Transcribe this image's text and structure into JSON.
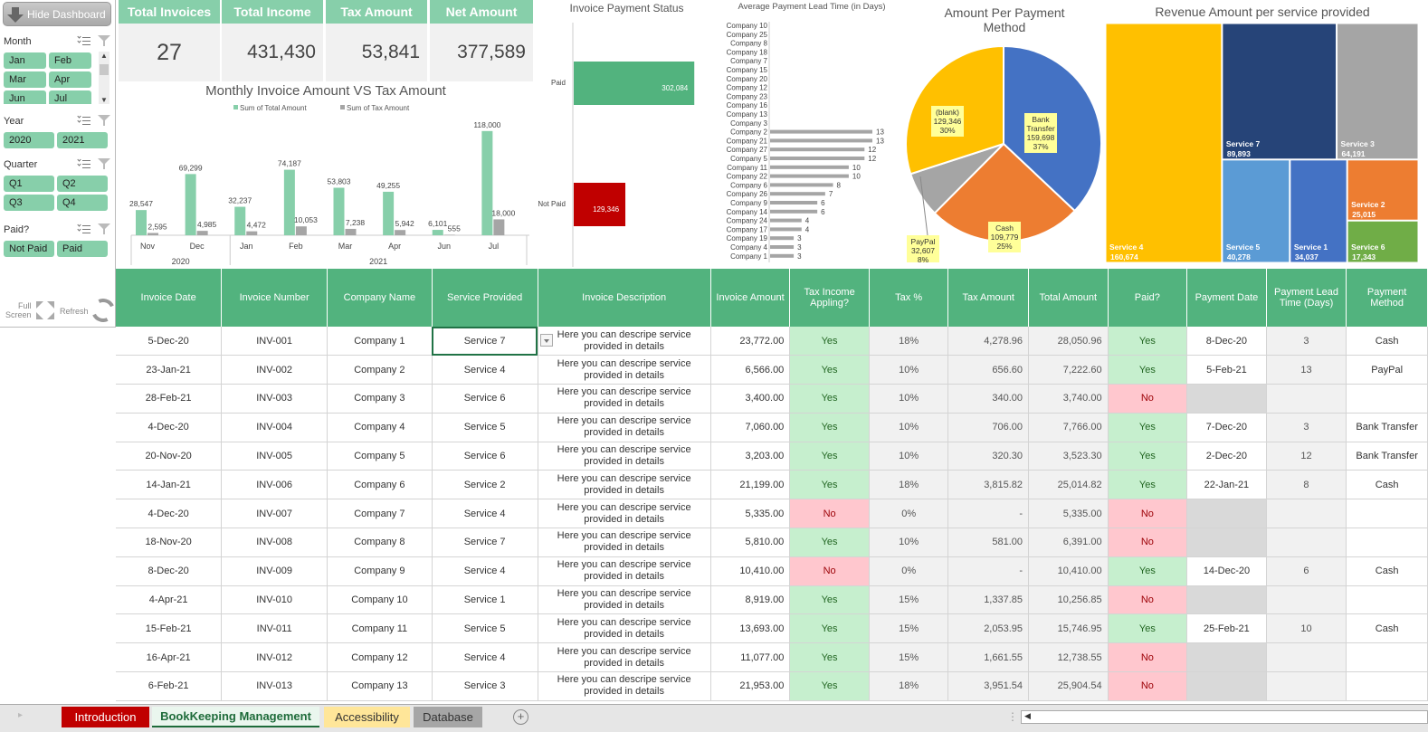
{
  "sidebar": {
    "hide_button": "Hide Dashboard",
    "slicers": [
      {
        "title": "Month",
        "items": [
          "Jan",
          "Feb",
          "Mar",
          "Apr",
          "Jun",
          "Jul"
        ]
      },
      {
        "title": "Year",
        "items": [
          "2020",
          "2021"
        ]
      },
      {
        "title": "Quarter",
        "items": [
          "Q1",
          "Q2",
          "Q3",
          "Q4"
        ]
      },
      {
        "title": "Paid?",
        "items": [
          "Not Paid",
          "Paid"
        ]
      }
    ],
    "full_screen_line1": "Full",
    "full_screen_line2": "Screen",
    "refresh": "Refresh"
  },
  "kpis": [
    {
      "label": "Total Invoices",
      "value": "27"
    },
    {
      "label": "Total Income",
      "value": "431,430"
    },
    {
      "label": "Tax Amount",
      "value": "53,841"
    },
    {
      "label": "Net Amount",
      "value": "377,589"
    }
  ],
  "chart_data": [
    {
      "type": "bar",
      "title": "Monthly Invoice Amount VS Tax Amount",
      "categories": [
        "Nov",
        "Dec",
        "Jan",
        "Feb",
        "Mar",
        "Apr",
        "Jun",
        "Jul"
      ],
      "groups": [
        {
          "label": "2020",
          "span": 2
        },
        {
          "label": "2021",
          "span": 6
        }
      ],
      "series": [
        {
          "name": "Sum of Total Amount",
          "color": "#87cfaa",
          "values": [
            28547,
            69299,
            32237,
            74187,
            53803,
            49255,
            6101,
            118000
          ],
          "labels": [
            "28,547",
            "69,299",
            "32,237",
            "74,187",
            "53,803",
            "49,255",
            "6,101",
            "118,000"
          ]
        },
        {
          "name": "Sum of Tax Amount",
          "color": "#a5a5a5",
          "values": [
            2595,
            4985,
            4472,
            10053,
            7238,
            5942,
            555,
            18000
          ],
          "labels": [
            "2,595",
            "4,985",
            "4,472",
            "10,053",
            "7,238",
            "5,942",
            "555",
            "18,000"
          ]
        }
      ],
      "ylim": [
        0,
        125000
      ]
    },
    {
      "type": "bar",
      "orientation": "horizontal",
      "title": "Invoice Payment Status",
      "categories": [
        "Paid",
        "Not Paid"
      ],
      "values": [
        302084,
        129346
      ],
      "labels": [
        "302,084",
        "129,346"
      ],
      "colors": [
        "#52b37e",
        "#c00000"
      ],
      "xlim": [
        0,
        500000
      ]
    },
    {
      "type": "bar",
      "orientation": "horizontal",
      "title": "Average Payment Lead Time (in Days)",
      "categories": [
        "Company 10",
        "Company 25",
        "Company 8",
        "Company 18",
        "Company 7",
        "Company 15",
        "Company 20",
        "Company 12",
        "Company 23",
        "Company 16",
        "Company 13",
        "Company 3",
        "Company 2",
        "Company 21",
        "Company 27",
        "Company 5",
        "Company 11",
        "Company 22",
        "Company 6",
        "Company 26",
        "Company 9",
        "Company 14",
        "Company 24",
        "Company 17",
        "Company 19",
        "Company 4",
        "Company 1"
      ],
      "values": [
        null,
        null,
        null,
        null,
        null,
        null,
        null,
        null,
        null,
        null,
        null,
        null,
        13,
        13,
        12,
        12,
        10,
        10,
        8,
        7,
        6,
        6,
        4,
        4,
        3,
        3,
        3
      ],
      "color": "#a5a5a5",
      "xlim": [
        0,
        14
      ]
    },
    {
      "type": "pie",
      "title": "Amount Per Payment Method",
      "slices": [
        {
          "label": "Bank Transfer",
          "value": 159698,
          "value_label": "159,698",
          "pct": "37%",
          "color": "#4472c4"
        },
        {
          "label": "Cash",
          "value": 109779,
          "value_label": "109,779",
          "pct": "25%",
          "color": "#ed7d31"
        },
        {
          "label": "PayPal",
          "value": 32607,
          "value_label": "32,607",
          "pct": "8%",
          "color": "#a5a5a5"
        },
        {
          "label": "(blank)",
          "value": 129346,
          "value_label": "129,346",
          "pct": "30%",
          "color": "#ffc000"
        }
      ]
    },
    {
      "type": "treemap",
      "title": "Revenue Amount per service provided",
      "items": [
        {
          "label": "Service 4",
          "value": 160674,
          "value_label": "160,674",
          "color": "#ffc000"
        },
        {
          "label": "Service 7",
          "value": 89893,
          "value_label": "89,893",
          "color": "#264478"
        },
        {
          "label": "Service 3",
          "value": 64191,
          "value_label": "64,191",
          "color": "#a5a5a5"
        },
        {
          "label": "Service 5",
          "value": 40278,
          "value_label": "40,278",
          "color": "#5b9bd5"
        },
        {
          "label": "Service 1",
          "value": 34037,
          "value_label": "34,037",
          "color": "#4472c4"
        },
        {
          "label": "Service 2",
          "value": 25015,
          "value_label": "25,015",
          "color": "#ed7d31"
        },
        {
          "label": "Service 6",
          "value": 17343,
          "value_label": "17,343",
          "color": "#70ad47"
        }
      ]
    }
  ],
  "table": {
    "headers": [
      "Invoice Date",
      "Invoice Number",
      "Company Name",
      "Service Provided",
      "Invoice Description",
      "Invoice Amount",
      "Tax Income Appling?",
      "Tax %",
      "Tax Amount",
      "Total Amount",
      "Paid?",
      "Payment Date",
      "Payment Lead Time (Days)",
      "Payment Method"
    ],
    "rows": [
      [
        "5-Dec-20",
        "INV-001",
        "Company 1",
        "Service 7",
        "Here you can descripe service provided in details",
        "23,772.00",
        "Yes",
        "18%",
        "4,278.96",
        "28,050.96",
        "Yes",
        "8-Dec-20",
        "3",
        "Cash"
      ],
      [
        "23-Jan-21",
        "INV-002",
        "Company 2",
        "Service 4",
        "Here you can descripe service provided in details",
        "6,566.00",
        "Yes",
        "10%",
        "656.60",
        "7,222.60",
        "Yes",
        "5-Feb-21",
        "13",
        "PayPal"
      ],
      [
        "28-Feb-21",
        "INV-003",
        "Company 3",
        "Service 6",
        "Here you can descripe service provided in details",
        "3,400.00",
        "Yes",
        "10%",
        "340.00",
        "3,740.00",
        "No",
        "",
        "",
        ""
      ],
      [
        "4-Dec-20",
        "INV-004",
        "Company 4",
        "Service 5",
        "Here you can descripe service provided in details",
        "7,060.00",
        "Yes",
        "10%",
        "706.00",
        "7,766.00",
        "Yes",
        "7-Dec-20",
        "3",
        "Bank Transfer"
      ],
      [
        "20-Nov-20",
        "INV-005",
        "Company 5",
        "Service 6",
        "Here you can descripe service provided in details",
        "3,203.00",
        "Yes",
        "10%",
        "320.30",
        "3,523.30",
        "Yes",
        "2-Dec-20",
        "12",
        "Bank Transfer"
      ],
      [
        "14-Jan-21",
        "INV-006",
        "Company 6",
        "Service 2",
        "Here you can descripe service provided in details",
        "21,199.00",
        "Yes",
        "18%",
        "3,815.82",
        "25,014.82",
        "Yes",
        "22-Jan-21",
        "8",
        "Cash"
      ],
      [
        "4-Dec-20",
        "INV-007",
        "Company 7",
        "Service 4",
        "Here you can descripe service provided in details",
        "5,335.00",
        "No",
        "0%",
        "-",
        "5,335.00",
        "No",
        "",
        "",
        ""
      ],
      [
        "18-Nov-20",
        "INV-008",
        "Company 8",
        "Service 7",
        "Here you can descripe service provided in details",
        "5,810.00",
        "Yes",
        "10%",
        "581.00",
        "6,391.00",
        "No",
        "",
        "",
        ""
      ],
      [
        "8-Dec-20",
        "INV-009",
        "Company 9",
        "Service 4",
        "Here you can descripe service provided in details",
        "10,410.00",
        "No",
        "0%",
        "-",
        "10,410.00",
        "Yes",
        "14-Dec-20",
        "6",
        "Cash"
      ],
      [
        "4-Apr-21",
        "INV-010",
        "Company 10",
        "Service 1",
        "Here you can descripe service provided in details",
        "8,919.00",
        "Yes",
        "15%",
        "1,337.85",
        "10,256.85",
        "No",
        "",
        "",
        ""
      ],
      [
        "15-Feb-21",
        "INV-011",
        "Company 11",
        "Service 5",
        "Here you can descripe service provided in details",
        "13,693.00",
        "Yes",
        "15%",
        "2,053.95",
        "15,746.95",
        "Yes",
        "25-Feb-21",
        "10",
        "Cash"
      ],
      [
        "16-Apr-21",
        "INV-012",
        "Company 12",
        "Service 4",
        "Here you can descripe service provided in details",
        "11,077.00",
        "Yes",
        "15%",
        "1,661.55",
        "12,738.55",
        "No",
        "",
        "",
        ""
      ],
      [
        "6-Feb-21",
        "INV-013",
        "Company 13",
        "Service 3",
        "Here you can descripe service provided in details",
        "21,953.00",
        "Yes",
        "18%",
        "3,951.54",
        "25,904.54",
        "No",
        "",
        "",
        ""
      ]
    ]
  },
  "sheet_tabs": [
    {
      "label": "Introduction",
      "bg": "#c00000",
      "fg": "#ffffff"
    },
    {
      "label": "BookKeeping Management",
      "bg": "#eaf6ee",
      "fg": "#1e6b3a"
    },
    {
      "label": "Accessibility",
      "bg": "#ffe699",
      "fg": "#333333"
    },
    {
      "label": "Database",
      "bg": "#a6a6a6",
      "fg": "#333333"
    }
  ],
  "add_sheet": "+"
}
